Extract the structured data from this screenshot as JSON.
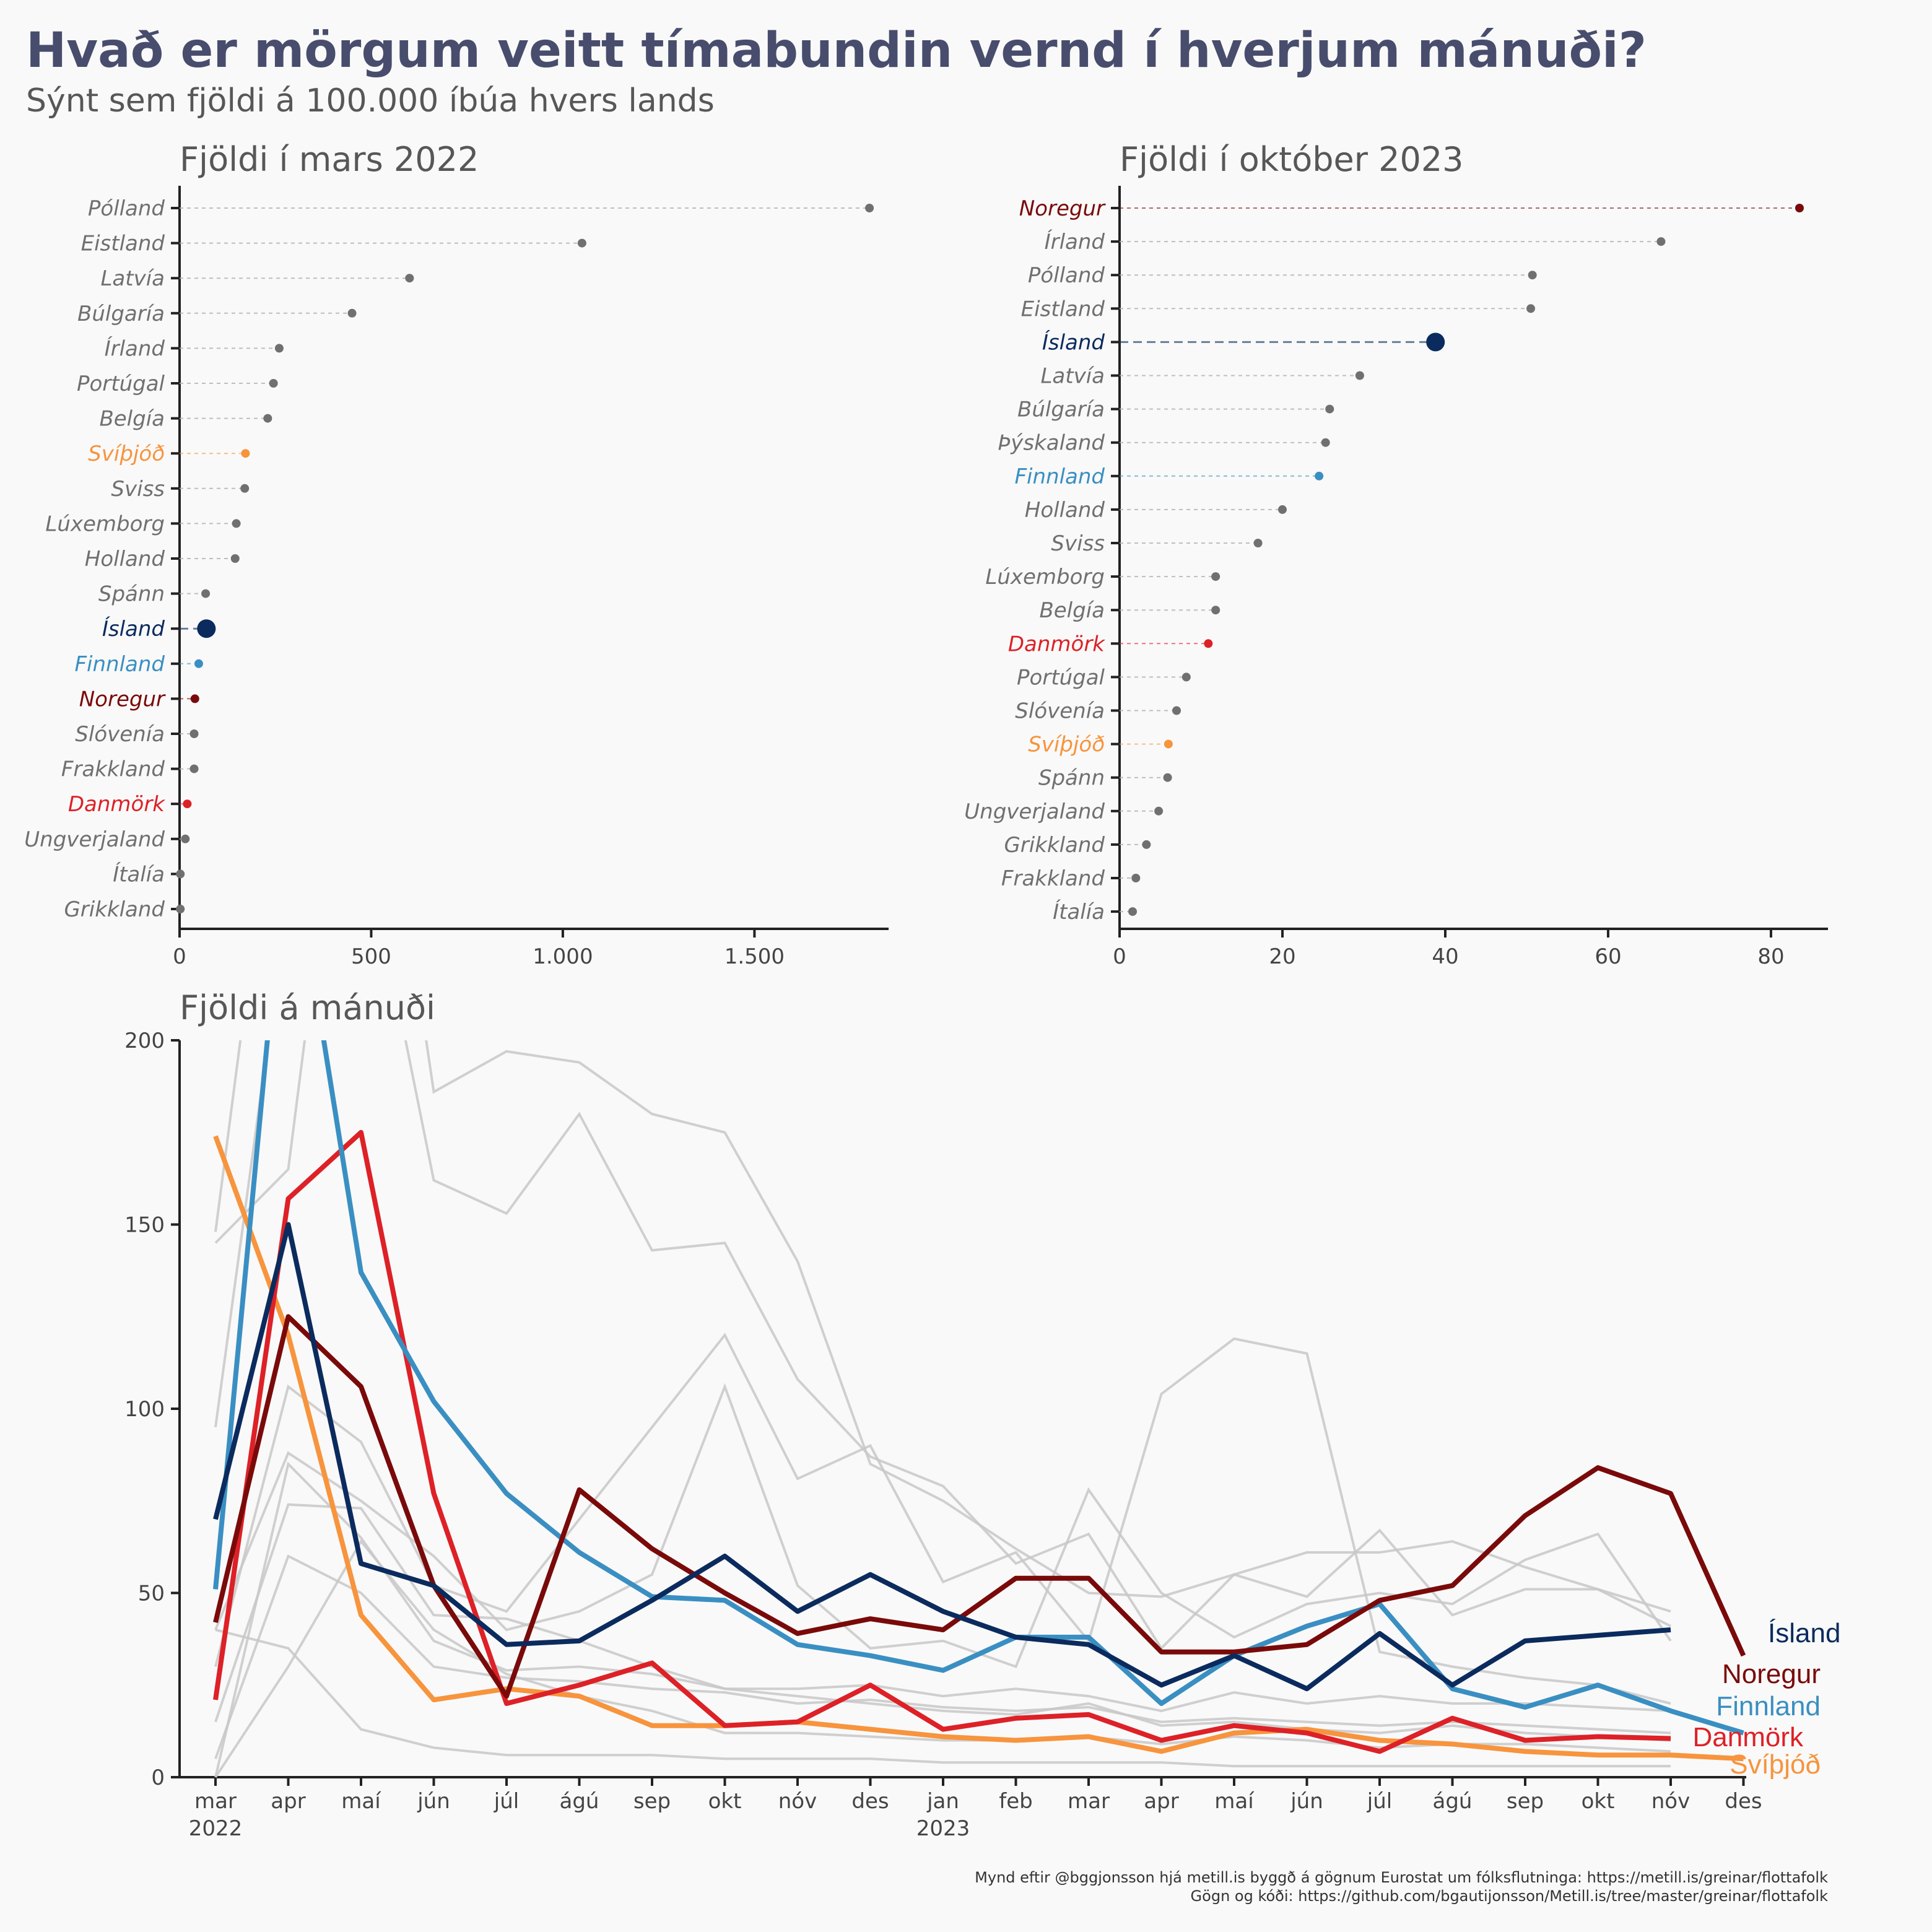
{
  "title": "Hvað er mörgum veitt tímabundin vernd í hverjum mánuði?",
  "subtitle": "Sýnt sem fjöldi á 100.000 íbúa hvers lands",
  "colors": {
    "Ísland": "#0b2b5e",
    "Noregur": "#7a0a0a",
    "Finnland": "#3a8fc2",
    "Danmörk": "#dd2127",
    "Svíþjóð": "#f7943d",
    "other_point": "#707070",
    "other_line": "#c8c8c8"
  },
  "caption": {
    "line1": "Mynd eftir @bggjonsson hjá metill.is byggð á gögnum Eurostat um fólksflutninga: https://metill.is/greinar/flottafolk",
    "line2": "Gögn og kóði: https://github.com/bgautijonsson/Metill.is/tree/master/greinar/flottafolk"
  },
  "chart_data": [
    {
      "type": "dot",
      "title": "Fjöldi í mars 2022",
      "xlim": [
        0,
        1850
      ],
      "xticks": [
        0,
        500,
        1000,
        1500
      ],
      "xtick_labels": [
        "0",
        "500",
        "1.000",
        "1.500"
      ],
      "categories": [
        "Pólland",
        "Eistland",
        "Latvía",
        "Búlgaría",
        "Írland",
        "Portúgal",
        "Belgía",
        "Svíþjóð",
        "Sviss",
        "Lúxemborg",
        "Holland",
        "Spánn",
        "Ísland",
        "Finnland",
        "Noregur",
        "Slóvenía",
        "Frakkland",
        "Danmörk",
        "Ungverjaland",
        "Ítalía",
        "Grikkland"
      ],
      "values": [
        1800,
        1050,
        600,
        450,
        260,
        245,
        230,
        172,
        170,
        148,
        145,
        68,
        70,
        50,
        40,
        38,
        38,
        20,
        15,
        2,
        2
      ]
    },
    {
      "type": "dot",
      "title": "Fjöldi í október 2023",
      "xlim": [
        0,
        87
      ],
      "xticks": [
        0,
        20,
        40,
        60,
        80
      ],
      "xtick_labels": [
        "0",
        "20",
        "40",
        "60",
        "80"
      ],
      "categories": [
        "Noregur",
        "Írland",
        "Pólland",
        "Eistland",
        "Ísland",
        "Latvía",
        "Búlgaría",
        "Þýskaland",
        "Finnland",
        "Holland",
        "Sviss",
        "Lúxemborg",
        "Belgía",
        "Danmörk",
        "Portúgal",
        "Slóvenía",
        "Svíþjóð",
        "Spánn",
        "Ungverjaland",
        "Grikkland",
        "Frakkland",
        "Ítalía"
      ],
      "values": [
        83.5,
        66.5,
        50.7,
        50.5,
        38.8,
        29.5,
        25.8,
        25.3,
        24.5,
        20.0,
        17.0,
        11.8,
        11.8,
        10.9,
        8.2,
        7.0,
        6.0,
        5.9,
        4.8,
        3.3,
        2.0,
        1.6
      ]
    },
    {
      "type": "line",
      "title": "Fjöldi á mánuði",
      "ylim": [
        0,
        200
      ],
      "yticks": [
        0,
        50,
        100,
        150,
        200
      ],
      "x_labels": [
        "mar",
        "apr",
        "maí",
        "jún",
        "júl",
        "ágú",
        "sep",
        "okt",
        "nóv",
        "des",
        "jan",
        "feb",
        "mar",
        "apr",
        "maí",
        "jún",
        "júl",
        "ágú",
        "sep",
        "okt",
        "nóv",
        "des"
      ],
      "year_labels": [
        {
          "index": 0,
          "label": "2022"
        },
        {
          "index": 10,
          "label": "2023"
        }
      ],
      "series": [
        {
          "name": "Ísland",
          "values": [
            70,
            150,
            58,
            52,
            36,
            37,
            48,
            60,
            45,
            55,
            45,
            38,
            36,
            25,
            33,
            24,
            39,
            25,
            37,
            38.5,
            40
          ]
        },
        {
          "name": "Noregur",
          "values": [
            42,
            125,
            106,
            52,
            22,
            78,
            62,
            50,
            39,
            43,
            40,
            54,
            54,
            34,
            34,
            36,
            48,
            52,
            71,
            84,
            77,
            33
          ]
        },
        {
          "name": "Finnland",
          "values": [
            51,
            260,
            137,
            102,
            77,
            61,
            49,
            48,
            36,
            33,
            29,
            38,
            38,
            20,
            33,
            41,
            47,
            24,
            19,
            25,
            18,
            12
          ]
        },
        {
          "name": "Danmörk",
          "values": [
            21,
            157,
            175,
            77,
            20,
            25,
            31,
            14,
            15,
            25,
            13,
            16,
            17,
            10,
            14,
            12,
            7,
            16,
            10,
            11,
            10.5
          ]
        },
        {
          "name": "Svíþjóð",
          "values": [
            174,
            120,
            44,
            21,
            24,
            22,
            14,
            14,
            15,
            13,
            11,
            10,
            11,
            7,
            12,
            13,
            10,
            9,
            7,
            6,
            6,
            5
          ]
        },
        {
          "values": [
            148,
            300,
            300,
            300,
            300,
            300,
            300,
            300,
            300,
            300,
            300,
            300,
            300,
            300,
            300,
            300,
            300,
            300,
            300,
            300,
            300
          ]
        },
        {
          "values": [
            145,
            165,
            320,
            186,
            197,
            194,
            180,
            175,
            140,
            85,
            75,
            62,
            50,
            49,
            55,
            49,
            67,
            44,
            51,
            51,
            45
          ]
        },
        {
          "values": [
            95,
            240,
            260,
            162,
            153,
            180,
            143,
            145,
            108,
            87,
            79,
            58,
            66,
            35,
            55,
            61,
            61,
            64,
            57,
            51,
            41
          ]
        },
        {
          "values": [
            30,
            106,
            91,
            52,
            45,
            70,
            95,
            120,
            81,
            90,
            53,
            61,
            37,
            104,
            119,
            115,
            34,
            30,
            27,
            25,
            20
          ]
        },
        {
          "values": [
            40,
            88,
            75,
            60,
            40,
            45,
            55,
            106,
            52,
            35,
            37,
            30,
            78,
            50,
            38,
            47,
            50,
            47,
            59,
            66,
            37
          ]
        },
        {
          "values": [
            15,
            74,
            73,
            44,
            43,
            37,
            30,
            24,
            24,
            25,
            22,
            24,
            22,
            18,
            23,
            20,
            22,
            20,
            20,
            19,
            18
          ]
        },
        {
          "values": [
            0,
            30,
            64,
            40,
            28,
            22,
            18,
            12,
            12,
            11,
            10,
            10,
            11,
            9,
            11,
            10,
            8,
            9,
            9,
            8,
            7
          ]
        },
        {
          "values": [
            40,
            35,
            13,
            8,
            6,
            6,
            6,
            5,
            5,
            5,
            4,
            4,
            4,
            4,
            3,
            3,
            3,
            3,
            3,
            3,
            3
          ]
        },
        {
          "values": [
            0,
            85,
            65,
            37,
            29,
            30,
            28,
            24,
            22,
            20,
            18,
            17,
            20,
            14,
            15,
            13,
            12,
            14,
            12,
            11,
            10
          ]
        },
        {
          "values": [
            5,
            60,
            50,
            30,
            27,
            26,
            24,
            23,
            20,
            21,
            19,
            18,
            19,
            15,
            16,
            15,
            14,
            15,
            14,
            13,
            12
          ]
        }
      ]
    }
  ]
}
